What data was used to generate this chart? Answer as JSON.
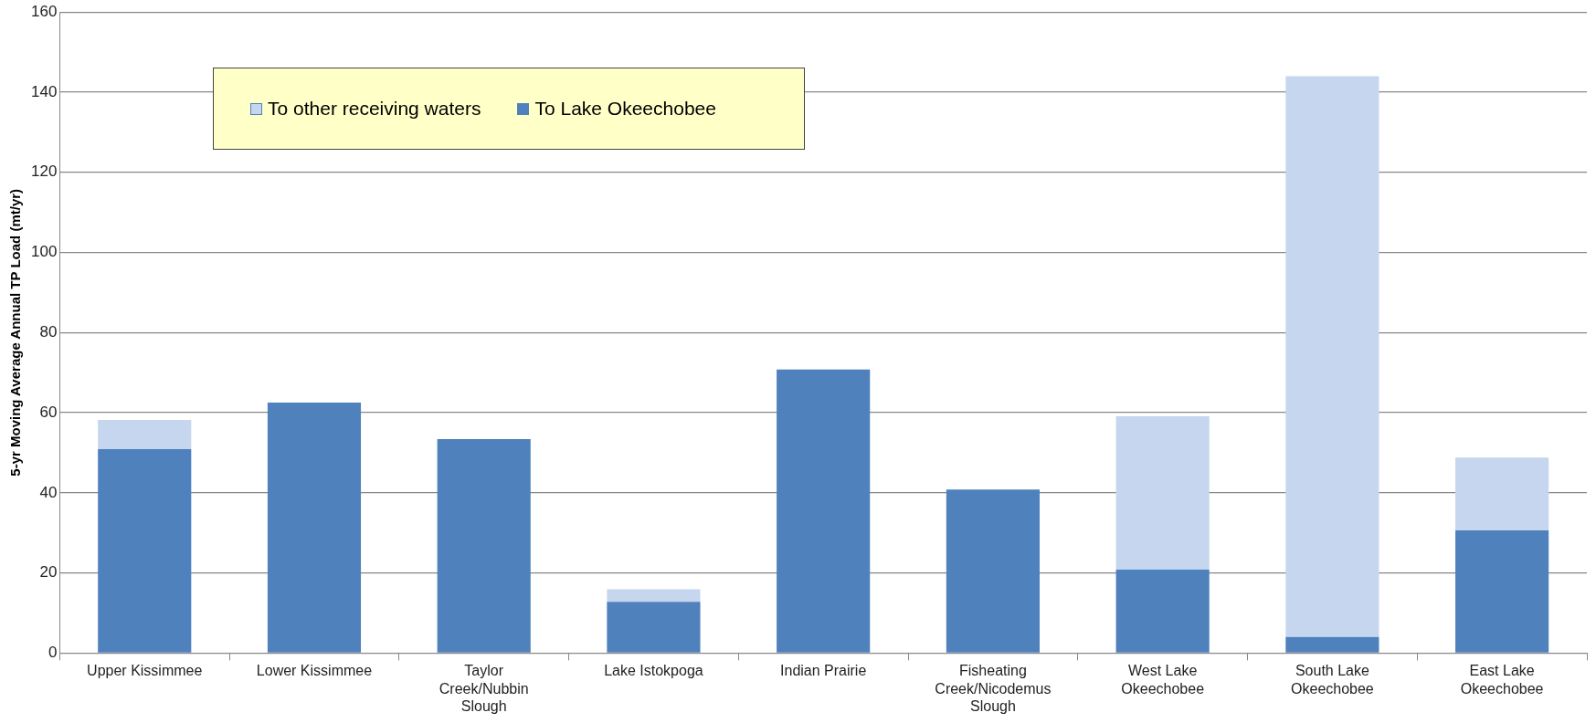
{
  "chart_data": {
    "type": "bar",
    "stacked": true,
    "ylabel": "5-yr Moving Average Annual TP Load (mt/yr)",
    "categories": [
      "Upper Kissimmee",
      "Lower Kissimmee",
      "Taylor Creek/Nubbin Slough",
      "Lake Istokpoga",
      "Indian Prairie",
      "Fisheating Creek/Nicodemus Slough",
      "West Lake Okeechobee",
      "South Lake Okeechobee",
      "East Lake Okeechobee"
    ],
    "series": [
      {
        "name": "To Lake Okeechobee",
        "color": "#4f81bd",
        "values": [
          50.9,
          62.5,
          53.4,
          12.8,
          70.8,
          40.8,
          20.8,
          4.0,
          30.6
        ]
      },
      {
        "name": "To other receiving waters",
        "color": "#c5d6ee",
        "values": [
          7.3,
          0,
          0,
          3.1,
          0,
          0,
          38.3,
          140,
          18.2
        ]
      }
    ],
    "ylim": [
      0,
      160
    ],
    "yticks": [
      0,
      20,
      40,
      60,
      80,
      100,
      120,
      140,
      160
    ],
    "grid": "y",
    "legend": "top left"
  }
}
